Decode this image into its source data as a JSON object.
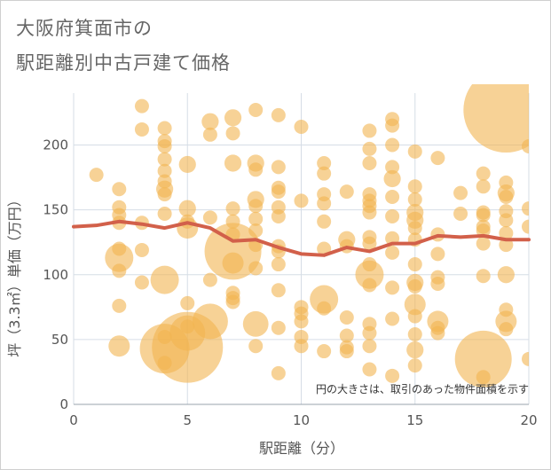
{
  "chart_data": {
    "type": "scatter",
    "title": "大阪府箕面市の",
    "subtitle": "駅距離別中古戸建て価格",
    "xlabel": "駅距離（分）",
    "ylabel": "坪（3.3㎡）単価（万円）",
    "note": "円の大きさは、取引のあった物件面積を示す",
    "xlim": [
      0,
      20
    ],
    "ylim": [
      0,
      240
    ],
    "xticks": [
      "0",
      "5",
      "10",
      "15",
      "20"
    ],
    "yticks": [
      "0",
      "50",
      "100",
      "150",
      "200"
    ],
    "grid": true,
    "bubble_color": "#F2B450",
    "line_color": "#D2604A",
    "points": [
      {
        "x": 1,
        "y": 177,
        "s": 1
      },
      {
        "x": 2,
        "y": 166,
        "s": 1
      },
      {
        "x": 2,
        "y": 152,
        "s": 1
      },
      {
        "x": 2,
        "y": 146,
        "s": 1
      },
      {
        "x": 2,
        "y": 140,
        "s": 1
      },
      {
        "x": 2,
        "y": 120,
        "s": 1
      },
      {
        "x": 2,
        "y": 113,
        "s": 2
      },
      {
        "x": 2,
        "y": 103,
        "s": 1
      },
      {
        "x": 2,
        "y": 76,
        "s": 1
      },
      {
        "x": 2,
        "y": 45,
        "s": 1.5
      },
      {
        "x": 3,
        "y": 230,
        "s": 1
      },
      {
        "x": 3,
        "y": 212,
        "s": 1
      },
      {
        "x": 3,
        "y": 140,
        "s": 1
      },
      {
        "x": 3,
        "y": 119,
        "s": 1
      },
      {
        "x": 3,
        "y": 94,
        "s": 1
      },
      {
        "x": 4,
        "y": 213,
        "s": 1
      },
      {
        "x": 4,
        "y": 203,
        "s": 1
      },
      {
        "x": 4,
        "y": 199,
        "s": 1
      },
      {
        "x": 4,
        "y": 189,
        "s": 1
      },
      {
        "x": 4,
        "y": 180,
        "s": 1
      },
      {
        "x": 4,
        "y": 172,
        "s": 1
      },
      {
        "x": 4,
        "y": 166,
        "s": 1.2
      },
      {
        "x": 4,
        "y": 162,
        "s": 1
      },
      {
        "x": 4,
        "y": 147,
        "s": 1
      },
      {
        "x": 4,
        "y": 96,
        "s": 2
      },
      {
        "x": 4,
        "y": 52,
        "s": 1
      },
      {
        "x": 4,
        "y": 43,
        "s": 3.5
      },
      {
        "x": 4,
        "y": 32,
        "s": 1
      },
      {
        "x": 5,
        "y": 185,
        "s": 1.2
      },
      {
        "x": 5,
        "y": 151,
        "s": 1.2
      },
      {
        "x": 5,
        "y": 141,
        "s": 1
      },
      {
        "x": 5,
        "y": 136,
        "s": 1.5
      },
      {
        "x": 5,
        "y": 78,
        "s": 1
      },
      {
        "x": 5,
        "y": 60,
        "s": 1
      },
      {
        "x": 5,
        "y": 55,
        "s": 2.5
      },
      {
        "x": 5,
        "y": 44,
        "s": 5
      },
      {
        "x": 6,
        "y": 218,
        "s": 1.2
      },
      {
        "x": 6,
        "y": 208,
        "s": 1
      },
      {
        "x": 6,
        "y": 144,
        "s": 1
      },
      {
        "x": 6,
        "y": 96,
        "s": 1
      },
      {
        "x": 6,
        "y": 64,
        "s": 2.5
      },
      {
        "x": 7,
        "y": 221,
        "s": 1.2
      },
      {
        "x": 7,
        "y": 209,
        "s": 1
      },
      {
        "x": 7,
        "y": 186,
        "s": 1.2
      },
      {
        "x": 7,
        "y": 151,
        "s": 1
      },
      {
        "x": 7,
        "y": 141,
        "s": 1
      },
      {
        "x": 7,
        "y": 131,
        "s": 1
      },
      {
        "x": 7,
        "y": 118,
        "s": 4
      },
      {
        "x": 7,
        "y": 109,
        "s": 1.5
      },
      {
        "x": 7,
        "y": 86,
        "s": 1
      },
      {
        "x": 7,
        "y": 82,
        "s": 1
      },
      {
        "x": 7,
        "y": 79,
        "s": 1
      },
      {
        "x": 8,
        "y": 227,
        "s": 1
      },
      {
        "x": 8,
        "y": 186,
        "s": 1.2
      },
      {
        "x": 8,
        "y": 181,
        "s": 1
      },
      {
        "x": 8,
        "y": 158,
        "s": 1.2
      },
      {
        "x": 8,
        "y": 153,
        "s": 1
      },
      {
        "x": 8,
        "y": 143,
        "s": 1
      },
      {
        "x": 8,
        "y": 134,
        "s": 1
      },
      {
        "x": 8,
        "y": 123,
        "s": 1
      },
      {
        "x": 8,
        "y": 105,
        "s": 1
      },
      {
        "x": 8,
        "y": 62,
        "s": 1.8
      },
      {
        "x": 8,
        "y": 45,
        "s": 1
      },
      {
        "x": 9,
        "y": 223,
        "s": 1
      },
      {
        "x": 9,
        "y": 183,
        "s": 1
      },
      {
        "x": 9,
        "y": 167,
        "s": 1
      },
      {
        "x": 9,
        "y": 164,
        "s": 1
      },
      {
        "x": 9,
        "y": 152,
        "s": 1
      },
      {
        "x": 9,
        "y": 145,
        "s": 1
      },
      {
        "x": 9,
        "y": 122,
        "s": 1
      },
      {
        "x": 9,
        "y": 118,
        "s": 1
      },
      {
        "x": 9,
        "y": 108,
        "s": 1
      },
      {
        "x": 9,
        "y": 88,
        "s": 1
      },
      {
        "x": 9,
        "y": 59,
        "s": 1
      },
      {
        "x": 9,
        "y": 24,
        "s": 1
      },
      {
        "x": 10,
        "y": 214,
        "s": 1
      },
      {
        "x": 10,
        "y": 157,
        "s": 1
      },
      {
        "x": 10,
        "y": 75,
        "s": 1
      },
      {
        "x": 10,
        "y": 70,
        "s": 1
      },
      {
        "x": 10,
        "y": 64,
        "s": 1
      },
      {
        "x": 10,
        "y": 52,
        "s": 1
      },
      {
        "x": 10,
        "y": 45,
        "s": 1
      },
      {
        "x": 11,
        "y": 186,
        "s": 1
      },
      {
        "x": 11,
        "y": 178,
        "s": 1
      },
      {
        "x": 11,
        "y": 162,
        "s": 1
      },
      {
        "x": 11,
        "y": 155,
        "s": 1
      },
      {
        "x": 11,
        "y": 141,
        "s": 1
      },
      {
        "x": 11,
        "y": 120,
        "s": 1
      },
      {
        "x": 11,
        "y": 81,
        "s": 2
      },
      {
        "x": 11,
        "y": 74,
        "s": 1
      },
      {
        "x": 11,
        "y": 41,
        "s": 1
      },
      {
        "x": 12,
        "y": 164,
        "s": 1
      },
      {
        "x": 12,
        "y": 127,
        "s": 1.2
      },
      {
        "x": 12,
        "y": 122,
        "s": 1
      },
      {
        "x": 12,
        "y": 67,
        "s": 1
      },
      {
        "x": 12,
        "y": 53,
        "s": 1
      },
      {
        "x": 12,
        "y": 44,
        "s": 1
      },
      {
        "x": 12,
        "y": 41,
        "s": 1
      },
      {
        "x": 13,
        "y": 211,
        "s": 1
      },
      {
        "x": 13,
        "y": 197,
        "s": 1
      },
      {
        "x": 13,
        "y": 186,
        "s": 1
      },
      {
        "x": 13,
        "y": 162,
        "s": 1
      },
      {
        "x": 13,
        "y": 157,
        "s": 1
      },
      {
        "x": 13,
        "y": 153,
        "s": 1
      },
      {
        "x": 13,
        "y": 148,
        "s": 1
      },
      {
        "x": 13,
        "y": 129,
        "s": 1
      },
      {
        "x": 13,
        "y": 124,
        "s": 1
      },
      {
        "x": 13,
        "y": 108,
        "s": 1
      },
      {
        "x": 13,
        "y": 100,
        "s": 2
      },
      {
        "x": 13,
        "y": 92,
        "s": 1
      },
      {
        "x": 13,
        "y": 62,
        "s": 1
      },
      {
        "x": 13,
        "y": 55,
        "s": 1
      },
      {
        "x": 13,
        "y": 45,
        "s": 1
      },
      {
        "x": 13,
        "y": 27,
        "s": 1
      },
      {
        "x": 14,
        "y": 220,
        "s": 1
      },
      {
        "x": 14,
        "y": 215,
        "s": 1
      },
      {
        "x": 14,
        "y": 200,
        "s": 1
      },
      {
        "x": 14,
        "y": 183,
        "s": 1
      },
      {
        "x": 14,
        "y": 174,
        "s": 1.2
      },
      {
        "x": 14,
        "y": 160,
        "s": 1
      },
      {
        "x": 14,
        "y": 145,
        "s": 1
      },
      {
        "x": 14,
        "y": 128,
        "s": 1
      },
      {
        "x": 14,
        "y": 117,
        "s": 1
      },
      {
        "x": 14,
        "y": 90,
        "s": 1
      },
      {
        "x": 14,
        "y": 66,
        "s": 1
      },
      {
        "x": 14,
        "y": 22,
        "s": 1
      },
      {
        "x": 15,
        "y": 195,
        "s": 1
      },
      {
        "x": 15,
        "y": 168,
        "s": 1
      },
      {
        "x": 15,
        "y": 158,
        "s": 1
      },
      {
        "x": 15,
        "y": 148,
        "s": 1.2
      },
      {
        "x": 15,
        "y": 142,
        "s": 1.2
      },
      {
        "x": 15,
        "y": 136,
        "s": 1
      },
      {
        "x": 15,
        "y": 127,
        "s": 1
      },
      {
        "x": 15,
        "y": 108,
        "s": 1
      },
      {
        "x": 15,
        "y": 94,
        "s": 1.2
      },
      {
        "x": 15,
        "y": 91,
        "s": 1
      },
      {
        "x": 15,
        "y": 77,
        "s": 1.5
      },
      {
        "x": 15,
        "y": 68,
        "s": 1
      },
      {
        "x": 15,
        "y": 54,
        "s": 1
      },
      {
        "x": 15,
        "y": 42,
        "s": 1.2
      },
      {
        "x": 15,
        "y": 30,
        "s": 1
      },
      {
        "x": 16,
        "y": 190,
        "s": 1
      },
      {
        "x": 16,
        "y": 131,
        "s": 1
      },
      {
        "x": 16,
        "y": 116,
        "s": 1
      },
      {
        "x": 16,
        "y": 98,
        "s": 1
      },
      {
        "x": 16,
        "y": 93,
        "s": 1
      },
      {
        "x": 16,
        "y": 64,
        "s": 1.5
      },
      {
        "x": 16,
        "y": 59,
        "s": 1
      },
      {
        "x": 16,
        "y": 55,
        "s": 1
      },
      {
        "x": 17,
        "y": 163,
        "s": 1
      },
      {
        "x": 17,
        "y": 147,
        "s": 1
      },
      {
        "x": 18,
        "y": 178,
        "s": 1
      },
      {
        "x": 18,
        "y": 168,
        "s": 1
      },
      {
        "x": 18,
        "y": 148,
        "s": 1
      },
      {
        "x": 18,
        "y": 146,
        "s": 1
      },
      {
        "x": 18,
        "y": 137,
        "s": 1
      },
      {
        "x": 18,
        "y": 134,
        "s": 1
      },
      {
        "x": 18,
        "y": 124,
        "s": 1
      },
      {
        "x": 18,
        "y": 99,
        "s": 1
      },
      {
        "x": 18,
        "y": 35,
        "s": 4
      },
      {
        "x": 18,
        "y": 21,
        "s": 1
      },
      {
        "x": 19,
        "y": 171,
        "s": 1
      },
      {
        "x": 19,
        "y": 163,
        "s": 1.2
      },
      {
        "x": 19,
        "y": 160,
        "s": 1
      },
      {
        "x": 19,
        "y": 149,
        "s": 1
      },
      {
        "x": 19,
        "y": 142,
        "s": 1
      },
      {
        "x": 19,
        "y": 132,
        "s": 1
      },
      {
        "x": 19,
        "y": 123,
        "s": 1
      },
      {
        "x": 19,
        "y": 100,
        "s": 1.2
      },
      {
        "x": 19,
        "y": 73,
        "s": 1
      },
      {
        "x": 19,
        "y": 64,
        "s": 1.5
      },
      {
        "x": 19,
        "y": 58,
        "s": 1
      },
      {
        "x": 19,
        "y": 227,
        "s": 6
      },
      {
        "x": 20,
        "y": 199,
        "s": 1
      },
      {
        "x": 20,
        "y": 151,
        "s": 1
      },
      {
        "x": 20,
        "y": 137,
        "s": 1
      },
      {
        "x": 20,
        "y": 35,
        "s": 1
      }
    ],
    "trend": {
      "x": [
        0,
        1,
        2,
        3,
        4,
        5,
        6,
        7,
        8,
        9,
        10,
        11,
        12,
        13,
        14,
        15,
        16,
        17,
        18,
        19,
        20
      ],
      "y": [
        137,
        138,
        141,
        139,
        136,
        140,
        136,
        126,
        127,
        121,
        116,
        115,
        121,
        118,
        124,
        124,
        130,
        129,
        130,
        127,
        127
      ]
    }
  }
}
